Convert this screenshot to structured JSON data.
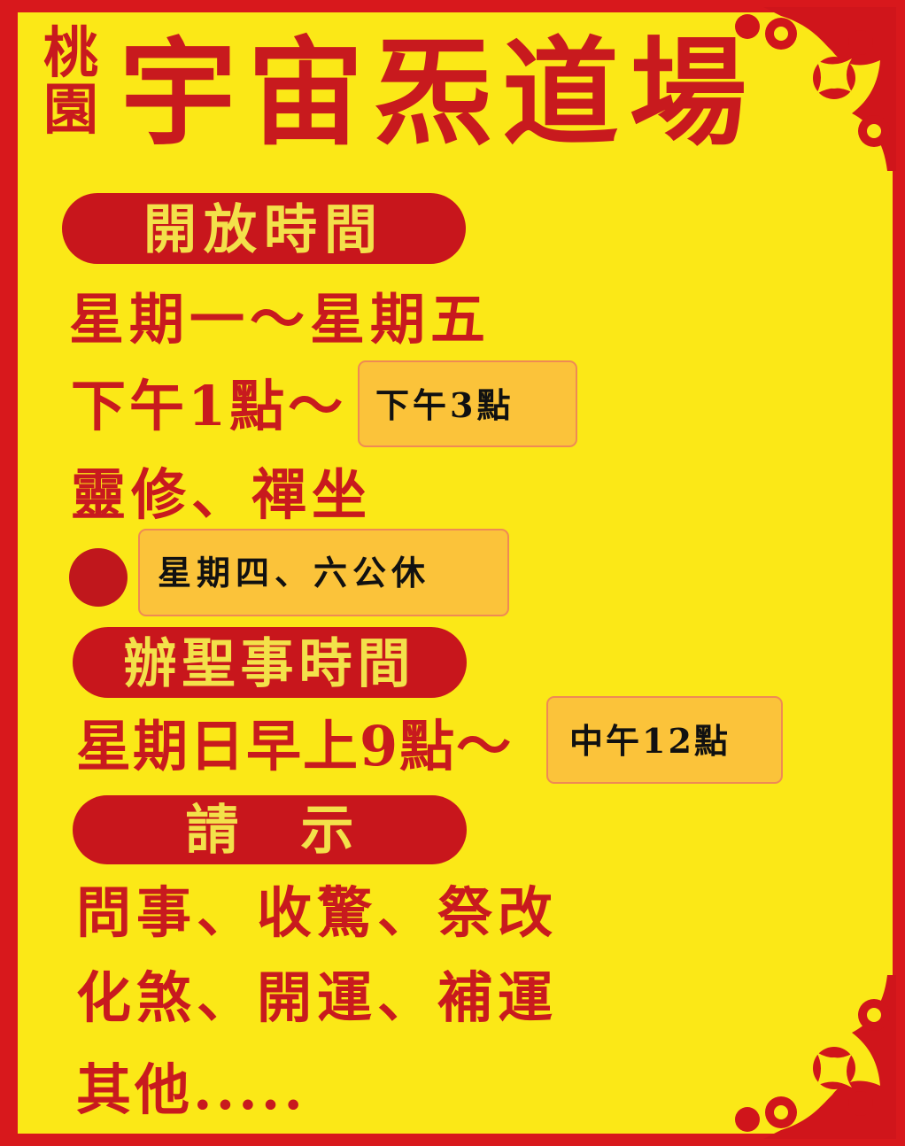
{
  "title": {
    "location": "桃園",
    "name": "宇宙炁道場"
  },
  "opening_hours": {
    "header": "開放時間",
    "days": "星期一～星期五",
    "time": "下午1點～",
    "time_end_note": "下午3點",
    "activities": "靈修、禪坐",
    "closed_note": "星期四、六公休"
  },
  "ritual_hours": {
    "header": "辦聖事時間",
    "time": "星期日早上9點～",
    "time_end_note": "中午12點"
  },
  "consultation": {
    "header": "請示",
    "lines": [
      "問事、收驚、祭改",
      "化煞、開運、補運",
      "其他....."
    ]
  },
  "colors": {
    "background": "#fbe817",
    "red": "#c81a1e",
    "pill_text": "#f3e14a",
    "note_background": "#fbc33a",
    "note_border": "#ef8a54"
  },
  "icons": {
    "corner_top": "paper-cut-ornament-icon",
    "corner_bottom": "paper-cut-ornament-icon",
    "bullet": "red-dot-icon"
  }
}
